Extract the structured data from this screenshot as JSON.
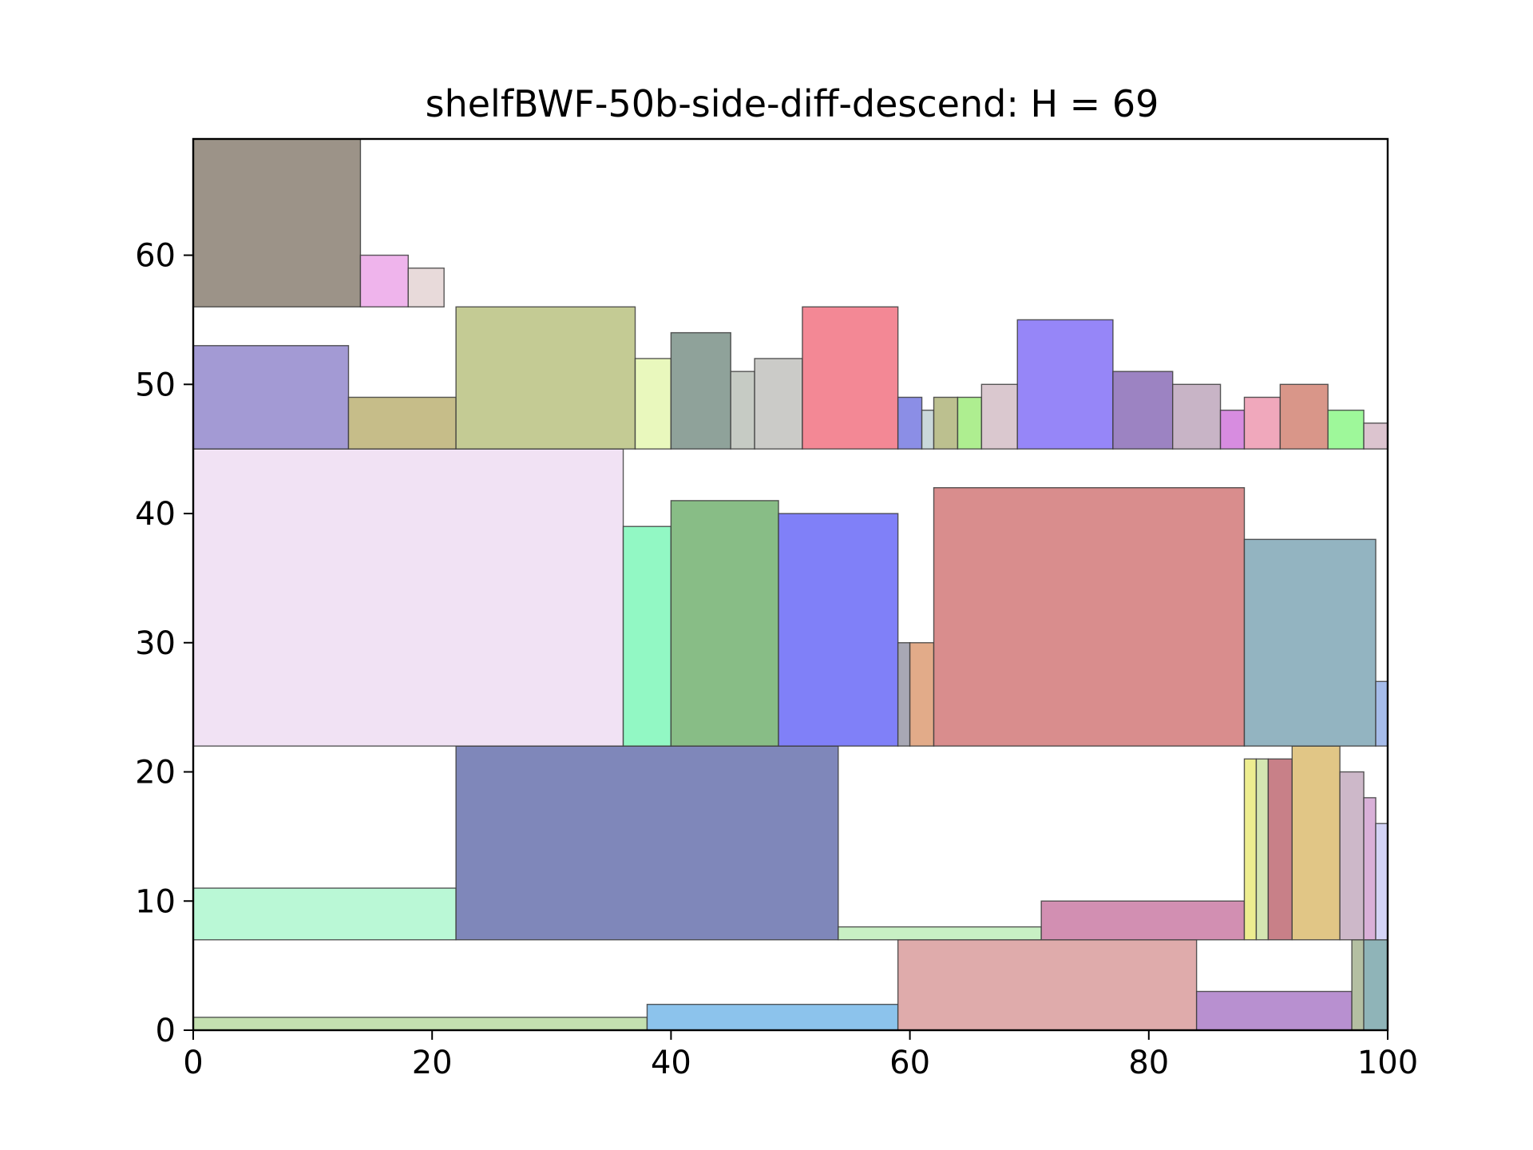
{
  "chart_data": {
    "type": "rectangles",
    "title": "shelfBWF-50b-side-diff-descend: H = 69",
    "xlim": [
      0,
      100
    ],
    "ylim": [
      0,
      69
    ],
    "x_ticks": [
      0,
      20,
      40,
      60,
      80,
      100
    ],
    "y_ticks": [
      0,
      10,
      20,
      30,
      40,
      50,
      60
    ],
    "grid": false,
    "rects": [
      {
        "x": 0,
        "y": 0,
        "w": 38,
        "h": 1,
        "color": "#c4e0b0"
      },
      {
        "x": 38,
        "y": 0,
        "w": 21,
        "h": 2,
        "color": "#8cc3ec"
      },
      {
        "x": 59,
        "y": 0,
        "w": 25,
        "h": 7,
        "color": "#dfabab"
      },
      {
        "x": 84,
        "y": 0,
        "w": 13,
        "h": 3,
        "color": "#b890d0"
      },
      {
        "x": 97,
        "y": 0,
        "w": 1,
        "h": 7,
        "color": "#b4bfa2"
      },
      {
        "x": 98,
        "y": 0,
        "w": 2,
        "h": 7,
        "color": "#8fb4b8"
      },
      {
        "x": 0,
        "y": 7,
        "w": 22,
        "h": 4,
        "color": "#baf8d6"
      },
      {
        "x": 22,
        "y": 7,
        "w": 32,
        "h": 15,
        "color": "#7f87ba"
      },
      {
        "x": 54,
        "y": 7,
        "w": 17,
        "h": 1,
        "color": "#c8f0c4"
      },
      {
        "x": 71,
        "y": 7,
        "w": 17,
        "h": 3,
        "color": "#d28fb2"
      },
      {
        "x": 88,
        "y": 7,
        "w": 1,
        "h": 14,
        "color": "#eded90"
      },
      {
        "x": 89,
        "y": 7,
        "w": 1,
        "h": 14,
        "color": "#d4e6b2"
      },
      {
        "x": 90,
        "y": 7,
        "w": 2,
        "h": 14,
        "color": "#c88088"
      },
      {
        "x": 92,
        "y": 7,
        "w": 4,
        "h": 15,
        "color": "#e1c686"
      },
      {
        "x": 96,
        "y": 7,
        "w": 2,
        "h": 13,
        "color": "#cdb8c9"
      },
      {
        "x": 98,
        "y": 7,
        "w": 1,
        "h": 11,
        "color": "#d9b0d8"
      },
      {
        "x": 99,
        "y": 7,
        "w": 1,
        "h": 9,
        "color": "#d4d4f6"
      },
      {
        "x": 0,
        "y": 22,
        "w": 36,
        "h": 23,
        "color": "#f1e2f4"
      },
      {
        "x": 36,
        "y": 22,
        "w": 4,
        "h": 17,
        "color": "#92f8c4"
      },
      {
        "x": 40,
        "y": 22,
        "w": 9,
        "h": 19,
        "color": "#88bd86"
      },
      {
        "x": 49,
        "y": 22,
        "w": 10,
        "h": 18,
        "color": "#8080f8"
      },
      {
        "x": 59,
        "y": 22,
        "w": 1,
        "h": 8,
        "color": "#a8a8b4"
      },
      {
        "x": 60,
        "y": 22,
        "w": 2,
        "h": 8,
        "color": "#e2ab89"
      },
      {
        "x": 62,
        "y": 22,
        "w": 26,
        "h": 20,
        "color": "#d98d8d"
      },
      {
        "x": 88,
        "y": 22,
        "w": 11,
        "h": 16,
        "color": "#93b4c1"
      },
      {
        "x": 99,
        "y": 22,
        "w": 1,
        "h": 5,
        "color": "#a6bcea"
      },
      {
        "x": 0,
        "y": 45,
        "w": 13,
        "h": 8,
        "color": "#a39ad4"
      },
      {
        "x": 13,
        "y": 45,
        "w": 9,
        "h": 4,
        "color": "#c6bd89"
      },
      {
        "x": 22,
        "y": 45,
        "w": 15,
        "h": 11,
        "color": "#c4cb94"
      },
      {
        "x": 37,
        "y": 45,
        "w": 3,
        "h": 7,
        "color": "#e9f8bd"
      },
      {
        "x": 40,
        "y": 45,
        "w": 5,
        "h": 9,
        "color": "#8fa29a"
      },
      {
        "x": 45,
        "y": 45,
        "w": 2,
        "h": 6,
        "color": "#c6cbc4"
      },
      {
        "x": 47,
        "y": 45,
        "w": 4,
        "h": 7,
        "color": "#cbcbc8"
      },
      {
        "x": 51,
        "y": 45,
        "w": 8,
        "h": 11,
        "color": "#f38895"
      },
      {
        "x": 59,
        "y": 45,
        "w": 2,
        "h": 4,
        "color": "#8b8ee6"
      },
      {
        "x": 61,
        "y": 45,
        "w": 1,
        "h": 3,
        "color": "#cad8da"
      },
      {
        "x": 62,
        "y": 45,
        "w": 2,
        "h": 4,
        "color": "#bcc08f"
      },
      {
        "x": 64,
        "y": 45,
        "w": 2,
        "h": 4,
        "color": "#aeee90"
      },
      {
        "x": 66,
        "y": 45,
        "w": 3,
        "h": 5,
        "color": "#dac8cf"
      },
      {
        "x": 69,
        "y": 45,
        "w": 8,
        "h": 10,
        "color": "#9686f8"
      },
      {
        "x": 77,
        "y": 45,
        "w": 5,
        "h": 6,
        "color": "#9c83c2"
      },
      {
        "x": 82,
        "y": 45,
        "w": 4,
        "h": 5,
        "color": "#c8b4c6"
      },
      {
        "x": 86,
        "y": 45,
        "w": 2,
        "h": 3,
        "color": "#d78ce0"
      },
      {
        "x": 88,
        "y": 45,
        "w": 3,
        "h": 4,
        "color": "#f0a8bc"
      },
      {
        "x": 91,
        "y": 45,
        "w": 4,
        "h": 5,
        "color": "#d99689"
      },
      {
        "x": 95,
        "y": 45,
        "w": 3,
        "h": 3,
        "color": "#9ef89a"
      },
      {
        "x": 98,
        "y": 45,
        "w": 2,
        "h": 2,
        "color": "#dcc4cf"
      },
      {
        "x": 0,
        "y": 56,
        "w": 14,
        "h": 13,
        "color": "#9c9388"
      },
      {
        "x": 14,
        "y": 56,
        "w": 4,
        "h": 4,
        "color": "#efb4ec"
      },
      {
        "x": 18,
        "y": 56,
        "w": 3,
        "h": 3,
        "color": "#e8dada"
      }
    ]
  }
}
